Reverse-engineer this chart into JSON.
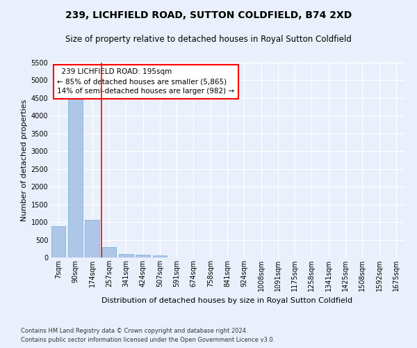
{
  "title": "239, LICHFIELD ROAD, SUTTON COLDFIELD, B74 2XD",
  "subtitle": "Size of property relative to detached houses in Royal Sutton Coldfield",
  "xlabel": "Distribution of detached houses by size in Royal Sutton Coldfield",
  "ylabel": "Number of detached properties",
  "footnote1": "Contains HM Land Registry data © Crown copyright and database right 2024.",
  "footnote2": "Contains public sector information licensed under the Open Government Licence v3.0.",
  "bar_labels": [
    "7sqm",
    "90sqm",
    "174sqm",
    "257sqm",
    "341sqm",
    "424sqm",
    "507sqm",
    "591sqm",
    "674sqm",
    "758sqm",
    "841sqm",
    "924sqm",
    "1008sqm",
    "1091sqm",
    "1175sqm",
    "1258sqm",
    "1341sqm",
    "1425sqm",
    "1508sqm",
    "1592sqm",
    "1675sqm"
  ],
  "bar_values": [
    880,
    4560,
    1060,
    285,
    95,
    75,
    50,
    0,
    0,
    0,
    0,
    0,
    0,
    0,
    0,
    0,
    0,
    0,
    0,
    0,
    0
  ],
  "bar_color": "#aec6e8",
  "bar_edge_color": "#6baed6",
  "property_line_x": 2.55,
  "property_line_color": "red",
  "annotation_text": "  239 LICHFIELD ROAD: 195sqm\n← 85% of detached houses are smaller (5,865)\n14% of semi-detached houses are larger (982) →",
  "annotation_box_color": "white",
  "annotation_box_edge_color": "red",
  "ylim": [
    0,
    5500
  ],
  "yticks": [
    0,
    500,
    1000,
    1500,
    2000,
    2500,
    3000,
    3500,
    4000,
    4500,
    5000,
    5500
  ],
  "background_color": "#eaf0fb",
  "grid_color": "white",
  "title_fontsize": 10,
  "subtitle_fontsize": 8.5,
  "axis_label_fontsize": 8,
  "tick_fontsize": 7,
  "annotation_fontsize": 7.5,
  "footnote_fontsize": 6
}
